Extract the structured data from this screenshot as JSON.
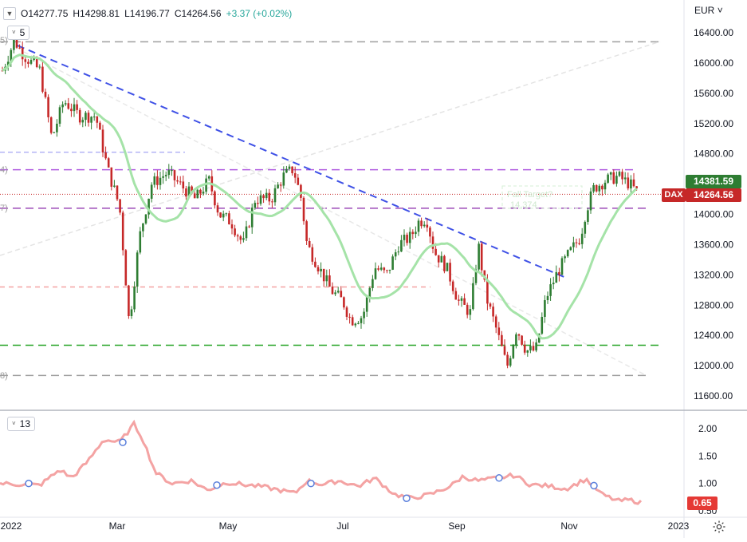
{
  "legend": {
    "open": "O14277.75",
    "high": "H14298.81",
    "low": "L14196.77",
    "close": "C14264.56",
    "change": "+3.37 (+0.02%)"
  },
  "currency": "EUR",
  "indicator_badge_top": "5",
  "indicator_badge_bottom": "13",
  "symbol_tag": "DAX",
  "price_tags": {
    "last": "14264.56",
    "upper": "14381.59",
    "lower_pane": "0.65"
  },
  "colors": {
    "bull": "#2e7d32",
    "bear": "#c62828",
    "ma": "#a5e3a8",
    "lower": "#f4a3a3",
    "upper_tag": "#2e7d32",
    "last_tag": "#c62828"
  },
  "y_axis_labels": [
    "16400.00",
    "16000.00",
    "15600.00",
    "15200.00",
    "14800.00",
    "14400.00",
    "14000.00",
    "13600.00",
    "13200.00",
    "12800.00",
    "12400.00",
    "12000.00",
    "11600.00"
  ],
  "lower_axis_labels": [
    "2.00",
    "1.50",
    "1.00",
    "0.50"
  ],
  "x_axis_labels": [
    "2022",
    "Mar",
    "May",
    "Jul",
    "Sep",
    "Nov",
    "2023"
  ],
  "left_edge_labels": [
    "5)",
    "4)",
    "7)",
    "8)"
  ],
  "faded_annotation": [
    "Fall Target?",
    "14,374"
  ],
  "chart_data": {
    "type": "candlestick",
    "price_range": [
      11600,
      16400
    ],
    "lower_range": [
      0.5,
      2.0
    ],
    "horizontal_levels": [
      16280,
      14590,
      14080,
      13040,
      12270,
      11870
    ],
    "last_price": 14264.56,
    "upper_price": 14381.59,
    "lower_last": 0.65
  }
}
